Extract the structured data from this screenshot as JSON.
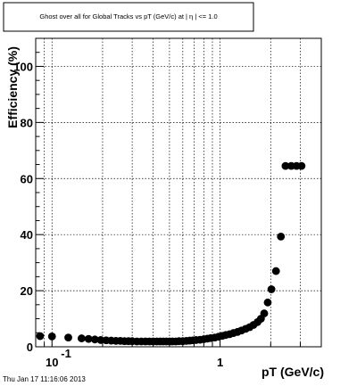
{
  "chart_data": {
    "type": "scatter",
    "title": "Ghost over all for Global Tracks vs pT (GeV/c) at | η | <= 1.0",
    "xlabel": "pT (GeV/c)",
    "ylabel": "Efficiency (%)",
    "x_scale": "log",
    "xlim": [
      0.08,
      4.0
    ],
    "ylim": [
      0,
      110
    ],
    "grid": true,
    "y_ticks": [
      0,
      20,
      40,
      60,
      80,
      100
    ],
    "y_tick_labels": [
      "0",
      "20",
      "40",
      "60",
      "80",
      "100"
    ],
    "x_major_ticks": [
      0.1,
      1
    ],
    "x_tick_labels": [
      {
        "base": "10",
        "exp": "-1"
      },
      {
        "base": "1",
        "exp": ""
      }
    ],
    "series": [
      {
        "marker": "filled-circle",
        "x": [
          0.085,
          0.1,
          0.125,
          0.15,
          0.165,
          0.18,
          0.195,
          0.21,
          0.225,
          0.24,
          0.255,
          0.27,
          0.285,
          0.3,
          0.32,
          0.34,
          0.36,
          0.38,
          0.4,
          0.42,
          0.44,
          0.46,
          0.48,
          0.5,
          0.52,
          0.545,
          0.57,
          0.6,
          0.63,
          0.66,
          0.69,
          0.72,
          0.76,
          0.8,
          0.84,
          0.88,
          0.93,
          0.98,
          1.03,
          1.08,
          1.14,
          1.2,
          1.27,
          1.34,
          1.42,
          1.5,
          1.58,
          1.67,
          1.75,
          1.83,
          1.92,
          2.02,
          2.15,
          2.3,
          2.45,
          2.65,
          2.85,
          3.05
        ],
        "y": [
          3.8,
          3.7,
          3.3,
          3.0,
          2.8,
          2.6,
          2.4,
          2.3,
          2.2,
          2.1,
          2.1,
          2.0,
          2.0,
          2.0,
          1.9,
          1.9,
          1.9,
          1.9,
          1.9,
          1.9,
          1.9,
          1.9,
          1.9,
          1.9,
          1.9,
          1.9,
          2.0,
          2.0,
          2.1,
          2.2,
          2.3,
          2.4,
          2.5,
          2.7,
          2.9,
          3.1,
          3.3,
          3.6,
          3.9,
          4.2,
          4.5,
          4.9,
          5.3,
          5.8,
          6.4,
          7.0,
          7.8,
          8.8,
          10.0,
          11.9,
          15.8,
          20.5,
          27.0,
          39.3,
          64.5,
          64.5,
          64.5,
          64.5
        ]
      }
    ]
  },
  "timestamp": "Thu Jan 17 11:16:06 2013"
}
